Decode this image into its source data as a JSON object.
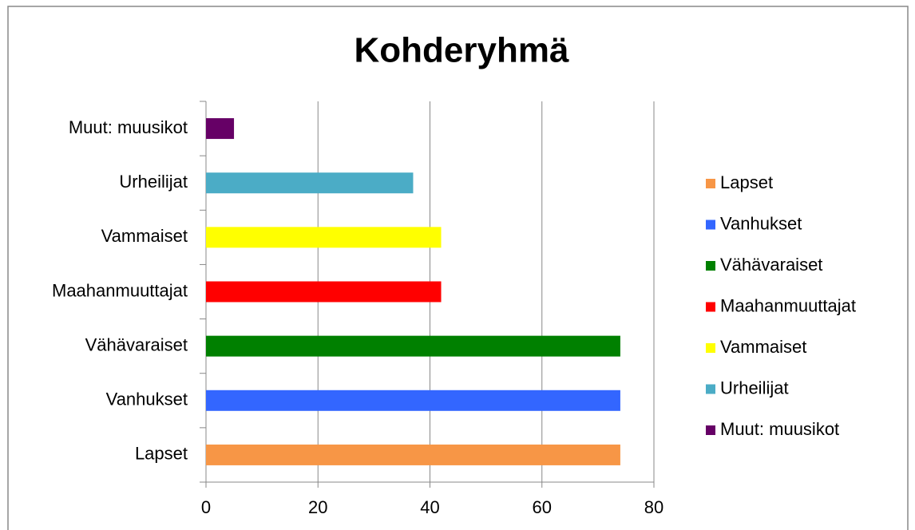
{
  "chart_data": {
    "type": "barh",
    "title": "Kohderyhmä",
    "categories": [
      "Lapset",
      "Vanhukset",
      "Vähävaraiset",
      "Maahanmuuttajat",
      "Vammaiset",
      "Urheilijat",
      "Muut: muusikot"
    ],
    "values": [
      74,
      74,
      74,
      42,
      42,
      37,
      5
    ],
    "colors": [
      "#f79646",
      "#3366ff",
      "#008000",
      "#ff0000",
      "#ffff00",
      "#4bacc6",
      "#660066"
    ],
    "xlim": [
      0,
      80
    ],
    "xticks": [
      0,
      20,
      40,
      60,
      80
    ],
    "grid": true,
    "legend": "right"
  }
}
